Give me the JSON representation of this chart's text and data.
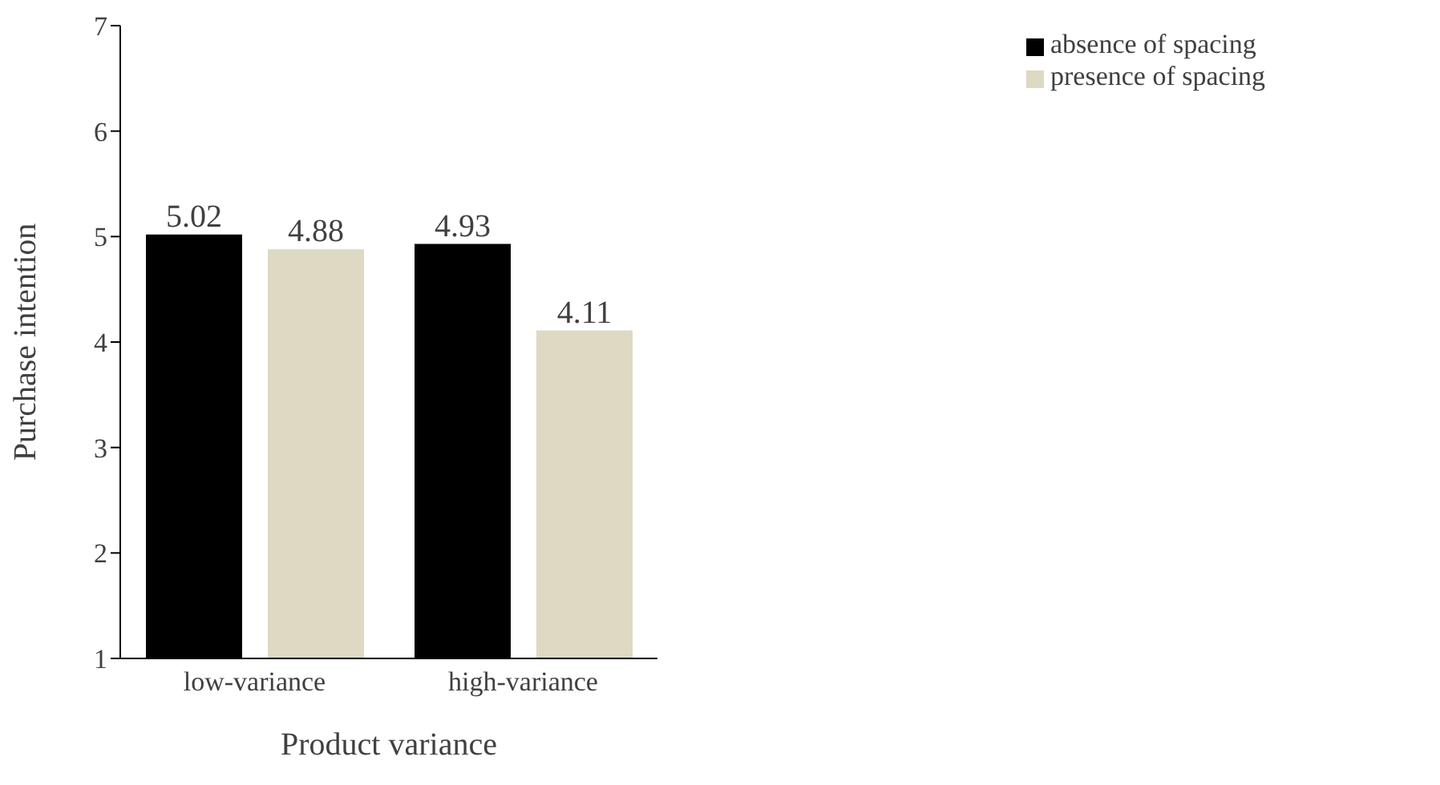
{
  "chart_data": {
    "type": "bar",
    "xlabel": "Product variance",
    "ylabel": "Purchase intention",
    "categories": [
      "low-variance",
      "high-variance"
    ],
    "series": [
      {
        "name": "absence of spacing",
        "color": "#000000",
        "values": [
          5.02,
          4.93
        ]
      },
      {
        "name": "presence of spacing",
        "color": "#ddd9c3",
        "values": [
          4.88,
          4.11
        ]
      }
    ],
    "ylim": [
      1,
      7
    ],
    "yticks": [
      1,
      2,
      3,
      4,
      5,
      6,
      7
    ],
    "grid": false,
    "legend": "top right",
    "data_labels": true
  }
}
